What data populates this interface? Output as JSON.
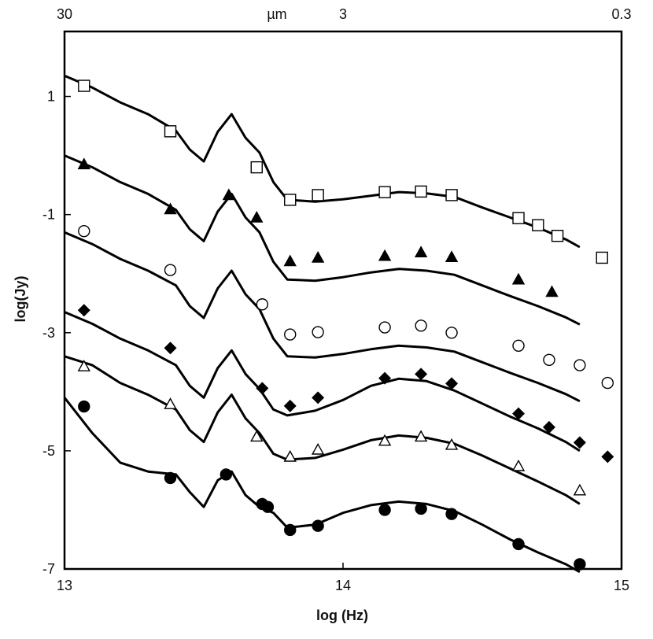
{
  "chart_data": {
    "type": "line",
    "title": "",
    "xlabel": "log (Hz)",
    "ylabel": "log(Jy)",
    "xlim": [
      13,
      15
    ],
    "ylim": [
      -7,
      2.1
    ],
    "x_ticks": [
      {
        "value": 13,
        "label": "13"
      },
      {
        "value": 14,
        "label": "14"
      },
      {
        "value": 15,
        "label": "15"
      }
    ],
    "y_ticks": [
      {
        "value": 1,
        "label": "1"
      },
      {
        "value": -1,
        "label": "-1"
      },
      {
        "value": -3,
        "label": "-3"
      },
      {
        "value": -5,
        "label": "-5"
      },
      {
        "value": -7,
        "label": "-7"
      }
    ],
    "top_axis": {
      "unit": "µm",
      "ticks": [
        {
          "value": 13,
          "label": "30"
        },
        {
          "value": 14,
          "label": "3"
        },
        {
          "value": 15,
          "label": "0.3"
        }
      ]
    },
    "grid": false,
    "legend": "none",
    "series": [
      {
        "marker": "open-square",
        "model": {
          "x": [
            13.0,
            13.1,
            13.2,
            13.3,
            13.4,
            13.45,
            13.5,
            13.55,
            13.6,
            13.65,
            13.7,
            13.75,
            13.8,
            13.9,
            14.0,
            14.1,
            14.2,
            14.3,
            14.4,
            14.5,
            14.6,
            14.7,
            14.8,
            14.85
          ],
          "y": [
            1.35,
            1.15,
            0.9,
            0.7,
            0.42,
            0.1,
            -0.1,
            0.4,
            0.7,
            0.3,
            0.05,
            -0.45,
            -0.75,
            -0.78,
            -0.74,
            -0.68,
            -0.62,
            -0.64,
            -0.7,
            -0.88,
            -1.05,
            -1.22,
            -1.42,
            -1.55
          ]
        },
        "points": {
          "x": [
            13.07,
            13.38,
            13.69,
            13.81,
            13.91,
            14.15,
            14.28,
            14.39,
            14.63,
            14.7,
            14.77,
            14.93
          ],
          "y": [
            1.18,
            0.41,
            -0.2,
            -0.75,
            -0.67,
            -0.62,
            -0.61,
            -0.67,
            -1.06,
            -1.18,
            -1.36,
            -1.73
          ]
        }
      },
      {
        "marker": "filled-triangle",
        "model": {
          "x": [
            13.0,
            13.1,
            13.2,
            13.3,
            13.4,
            13.45,
            13.5,
            13.55,
            13.6,
            13.65,
            13.7,
            13.75,
            13.8,
            13.9,
            14.0,
            14.1,
            14.2,
            14.3,
            14.4,
            14.5,
            14.6,
            14.7,
            14.8,
            14.85
          ],
          "y": [
            0.0,
            -0.2,
            -0.45,
            -0.65,
            -0.92,
            -1.25,
            -1.45,
            -0.95,
            -0.65,
            -1.05,
            -1.3,
            -1.8,
            -2.1,
            -2.12,
            -2.06,
            -1.98,
            -1.92,
            -1.95,
            -2.02,
            -2.2,
            -2.38,
            -2.55,
            -2.74,
            -2.86
          ]
        },
        "points": {
          "x": [
            13.07,
            13.38,
            13.59,
            13.69,
            13.81,
            13.91,
            14.15,
            14.28,
            14.39,
            14.63,
            14.75
          ],
          "y": [
            -0.15,
            -0.91,
            -0.67,
            -1.05,
            -1.79,
            -1.73,
            -1.7,
            -1.64,
            -1.72,
            -2.1,
            -2.31
          ]
        }
      },
      {
        "marker": "open-circle",
        "model": {
          "x": [
            13.0,
            13.1,
            13.2,
            13.3,
            13.4,
            13.45,
            13.5,
            13.55,
            13.6,
            13.65,
            13.7,
            13.75,
            13.8,
            13.9,
            14.0,
            14.1,
            14.2,
            14.3,
            14.4,
            14.5,
            14.6,
            14.7,
            14.8,
            14.85
          ],
          "y": [
            -1.3,
            -1.5,
            -1.75,
            -1.95,
            -2.2,
            -2.55,
            -2.75,
            -2.25,
            -1.95,
            -2.35,
            -2.6,
            -3.1,
            -3.4,
            -3.42,
            -3.36,
            -3.28,
            -3.22,
            -3.25,
            -3.32,
            -3.5,
            -3.68,
            -3.85,
            -4.04,
            -4.16
          ]
        },
        "points": {
          "x": [
            13.07,
            13.38,
            13.71,
            13.81,
            13.91,
            14.15,
            14.28,
            14.39,
            14.63,
            14.74,
            14.85,
            14.95
          ],
          "y": [
            -1.28,
            -1.94,
            -2.52,
            -3.03,
            -2.99,
            -2.91,
            -2.88,
            -3.0,
            -3.22,
            -3.46,
            -3.55,
            -3.85
          ]
        }
      },
      {
        "marker": "filled-diamond",
        "model": {
          "x": [
            13.0,
            13.1,
            13.2,
            13.3,
            13.4,
            13.45,
            13.5,
            13.55,
            13.6,
            13.65,
            13.7,
            13.75,
            13.8,
            13.9,
            14.0,
            14.1,
            14.2,
            14.3,
            14.4,
            14.5,
            14.6,
            14.7,
            14.8,
            14.85
          ],
          "y": [
            -2.65,
            -2.85,
            -3.1,
            -3.3,
            -3.55,
            -3.9,
            -4.1,
            -3.6,
            -3.3,
            -3.7,
            -3.95,
            -4.3,
            -4.4,
            -4.32,
            -4.14,
            -3.9,
            -3.78,
            -3.82,
            -3.98,
            -4.2,
            -4.42,
            -4.62,
            -4.85,
            -5.0
          ]
        },
        "points": {
          "x": [
            13.07,
            13.38,
            13.71,
            13.81,
            13.91,
            14.15,
            14.28,
            14.39,
            14.63,
            14.74,
            14.85,
            14.95
          ],
          "y": [
            -2.62,
            -3.26,
            -3.94,
            -4.24,
            -4.1,
            -3.77,
            -3.7,
            -3.86,
            -4.37,
            -4.6,
            -4.86,
            -5.1
          ]
        }
      },
      {
        "marker": "open-triangle",
        "model": {
          "x": [
            13.0,
            13.1,
            13.2,
            13.3,
            13.4,
            13.45,
            13.5,
            13.55,
            13.6,
            13.65,
            13.7,
            13.75,
            13.8,
            13.9,
            14.0,
            14.1,
            14.2,
            14.3,
            14.4,
            14.5,
            14.6,
            14.7,
            14.8,
            14.85
          ],
          "y": [
            -3.4,
            -3.55,
            -3.85,
            -4.05,
            -4.3,
            -4.65,
            -4.85,
            -4.35,
            -4.05,
            -4.45,
            -4.7,
            -5.05,
            -5.15,
            -5.12,
            -4.98,
            -4.82,
            -4.74,
            -4.78,
            -4.88,
            -5.08,
            -5.3,
            -5.52,
            -5.75,
            -5.9
          ]
        },
        "points": {
          "x": [
            13.07,
            13.38,
            13.69,
            13.81,
            13.91,
            14.15,
            14.28,
            14.39,
            14.63,
            14.85
          ],
          "y": [
            -3.57,
            -4.21,
            -4.76,
            -5.1,
            -4.98,
            -4.83,
            -4.76,
            -4.9,
            -5.26,
            -5.67
          ]
        }
      },
      {
        "marker": "filled-circle",
        "model": {
          "x": [
            13.0,
            13.1,
            13.2,
            13.3,
            13.4,
            13.45,
            13.5,
            13.55,
            13.6,
            13.65,
            13.7,
            13.75,
            13.8,
            13.9,
            14.0,
            14.1,
            14.2,
            14.3,
            14.4,
            14.5,
            14.6,
            14.7,
            14.8,
            14.85
          ],
          "y": [
            -4.1,
            -4.7,
            -5.2,
            -5.35,
            -5.4,
            -5.7,
            -5.95,
            -5.5,
            -5.35,
            -5.75,
            -5.95,
            -6.05,
            -6.3,
            -6.25,
            -6.05,
            -5.92,
            -5.86,
            -5.9,
            -6.02,
            -6.25,
            -6.5,
            -6.72,
            -6.92,
            -7.05
          ]
        },
        "points": {
          "x": [
            13.07,
            13.38,
            13.58,
            13.71,
            13.73,
            13.81,
            13.91,
            14.15,
            14.28,
            14.39,
            14.63,
            14.85
          ],
          "y": [
            -4.25,
            -5.46,
            -5.4,
            -5.9,
            -5.95,
            -6.34,
            -6.27,
            -6.0,
            -5.98,
            -6.07,
            -6.58,
            -6.92
          ]
        }
      }
    ]
  }
}
